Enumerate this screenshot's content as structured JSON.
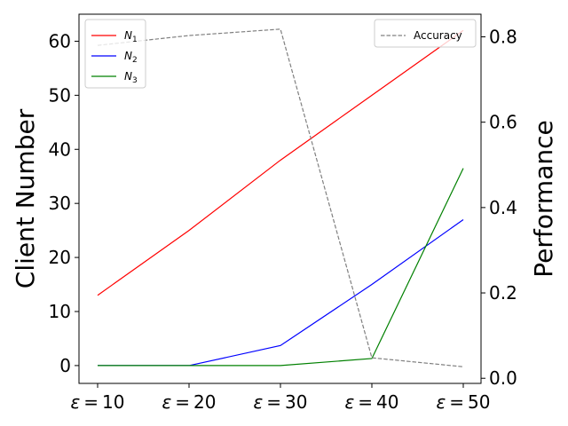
{
  "chart_data": {
    "type": "line",
    "x_categories": [
      "ε = 10",
      "ε = 20",
      "ε = 30",
      "ε = 40",
      "ε = 50"
    ],
    "left_axis": {
      "ylabel": "Client Number",
      "ylim": [
        -3.3,
        65
      ],
      "ticks": [
        0,
        10,
        20,
        30,
        40,
        50,
        60
      ]
    },
    "right_axis": {
      "ylabel": "Performance",
      "ylim": [
        -0.012,
        0.853
      ],
      "ticks": [
        "0.0",
        "0.2",
        "0.4",
        "0.6",
        "0.8"
      ]
    },
    "series": [
      {
        "name": "N1",
        "label_main": "N",
        "label_sub": "1",
        "axis": "left",
        "color": "#ff0000",
        "dash": "solid",
        "values": [
          13,
          25,
          38,
          50,
          62
        ]
      },
      {
        "name": "N2",
        "label_main": "N",
        "label_sub": "2",
        "axis": "left",
        "color": "#0000ff",
        "dash": "solid",
        "values": [
          0,
          0,
          3.7,
          15,
          27
        ]
      },
      {
        "name": "N3",
        "label_main": "N",
        "label_sub": "3",
        "axis": "left",
        "color": "#008000",
        "dash": "solid",
        "values": [
          0,
          0,
          0,
          1.3,
          36.5
        ]
      },
      {
        "name": "Accuracy",
        "label_main": "Accuracy",
        "label_sub": "",
        "axis": "right",
        "color": "#808080",
        "dash": "dashed",
        "values": [
          0.78,
          0.803,
          0.818,
          0.048,
          0.027
        ]
      }
    ],
    "legends": [
      {
        "position": "upper-left",
        "entries": [
          "N1",
          "N2",
          "N3"
        ]
      },
      {
        "position": "upper-right",
        "entries": [
          "Accuracy"
        ]
      }
    ],
    "grid": false
  }
}
